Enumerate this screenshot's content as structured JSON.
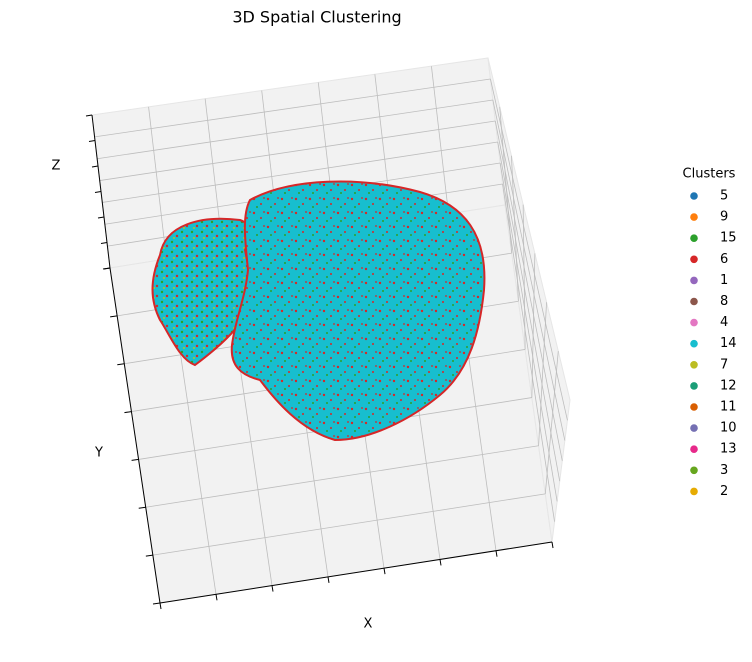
{
  "chart_data": {
    "type": "scatter3d",
    "title": "3D Spatial Clustering",
    "x_label": "X",
    "y_label": "Y",
    "z_label": "Z",
    "legend_title": "Clusters",
    "series": [
      {
        "name": "5",
        "color": "#1f77b4"
      },
      {
        "name": "9",
        "color": "#ff7f0e"
      },
      {
        "name": "15",
        "color": "#2ca02c"
      },
      {
        "name": "6",
        "color": "#d62728"
      },
      {
        "name": "1",
        "color": "#9467bd"
      },
      {
        "name": "8",
        "color": "#8c564b"
      },
      {
        "name": "4",
        "color": "#e377c2"
      },
      {
        "name": "14",
        "color": "#17becf"
      },
      {
        "name": "7",
        "color": "#bcbd22"
      },
      {
        "name": "12",
        "color": "#1b9e77"
      },
      {
        "name": "11",
        "color": "#d95f02"
      },
      {
        "name": "10",
        "color": "#7570b3"
      },
      {
        "name": "13",
        "color": "#e7298a"
      },
      {
        "name": "3",
        "color": "#66a61e"
      },
      {
        "name": "2",
        "color": "#e6ab02"
      }
    ]
  }
}
